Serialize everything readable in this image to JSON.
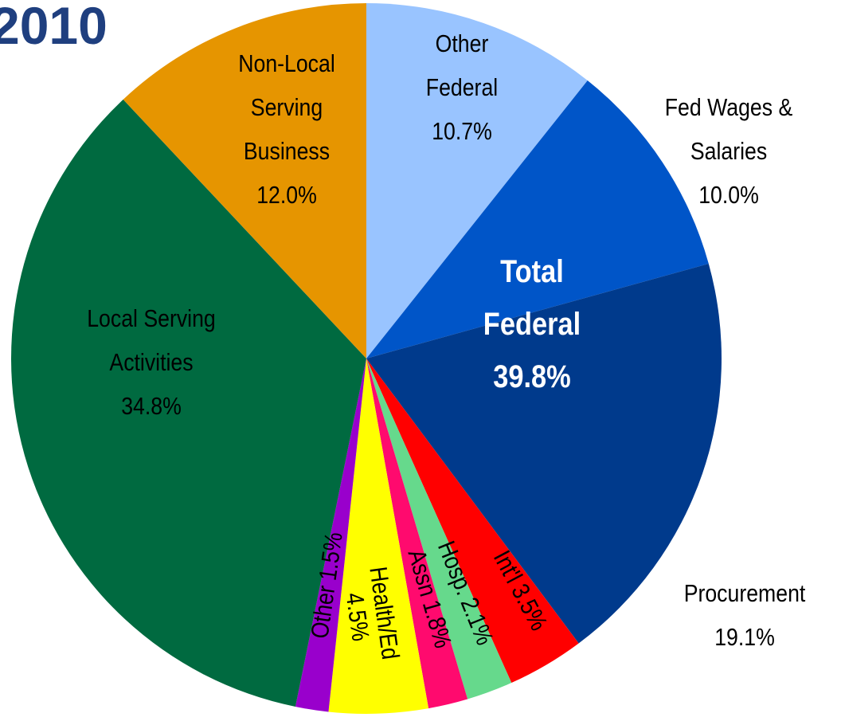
{
  "chart_data": {
    "type": "pie",
    "title": "2010",
    "categories": [
      "Other Federal",
      "Fed Wages & Salaries",
      "Procurement",
      "Int'l",
      "Hosp.",
      "Assn",
      "Health/Ed",
      "Other",
      "Local Serving Activities",
      "Non-Local Serving Business"
    ],
    "values": [
      10.7,
      10.0,
      19.1,
      3.5,
      2.1,
      1.8,
      4.5,
      1.5,
      34.8,
      12.0
    ],
    "value_labels": [
      "10.7%",
      "10.0%",
      "19.1%",
      "3.5%",
      "2.1%",
      "1.8%",
      "4.5%",
      "1.5%",
      "34.8%",
      "12.0%"
    ],
    "colors": [
      "#99c4ff",
      "#0055c8",
      "#003a8c",
      "#ff0000",
      "#66d98c",
      "#ff0a6e",
      "#ffff00",
      "#9900cc",
      "#006a40",
      "#e69500"
    ],
    "annotations": [
      "Total Federal",
      "39.8%"
    ]
  }
}
